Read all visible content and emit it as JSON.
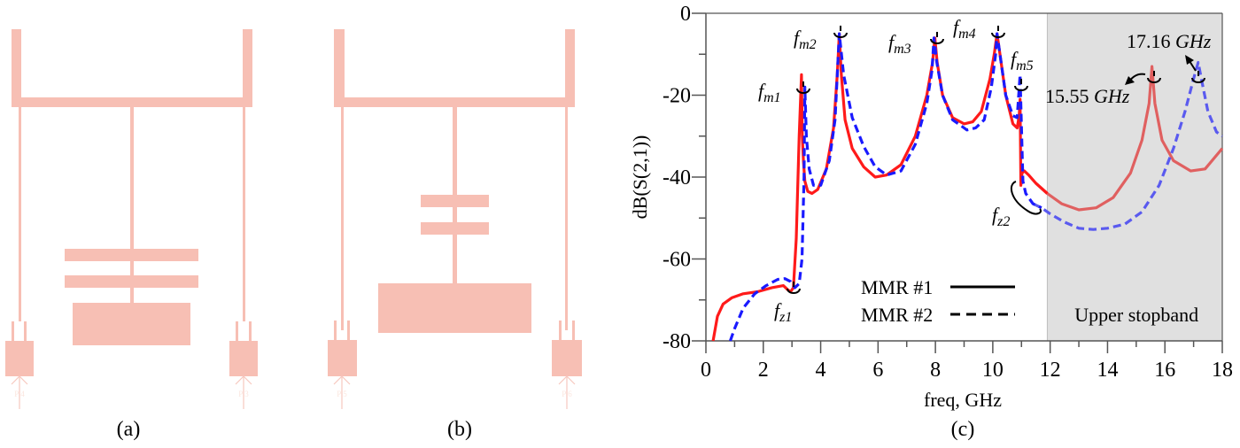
{
  "figure": {
    "captions": {
      "a": "(a)",
      "b": "(b)",
      "c": "(c)"
    },
    "layout_color": "#f7bfb4",
    "port_labels": {
      "a_left": "P 4",
      "a_right": "P 3",
      "b_left": "P 5",
      "b_right": "P 6"
    }
  },
  "chart_data": {
    "type": "line",
    "title": "",
    "xlabel": "freq, GHz",
    "ylabel": "dB(S(2,1))",
    "xlim": [
      0,
      18
    ],
    "ylim": [
      -80,
      0
    ],
    "xticks": [
      0,
      2,
      4,
      6,
      8,
      10,
      12,
      14,
      16,
      18
    ],
    "xtick_labels": [
      "0",
      "2",
      "4",
      "6",
      "8",
      "10",
      "12",
      "14",
      "16",
      "18"
    ],
    "yticks": [
      0,
      -20,
      -40,
      -60,
      -80
    ],
    "ytick_labels": [
      "0",
      "-20",
      "-40",
      "-60",
      "-80"
    ],
    "grid": false,
    "legend": {
      "position": "lower center",
      "entries": [
        {
          "label": "MMR #1",
          "style": "solid"
        },
        {
          "label": "MMR #2",
          "style": "dashed"
        }
      ]
    },
    "shaded_region": {
      "x0": 11.9,
      "x1": 18,
      "label": "Upper stopband",
      "color": "#e0e0e0"
    },
    "annotations": [
      {
        "id": "fm1",
        "text": "f",
        "sub": "m1",
        "x": 3.4,
        "y": -18
      },
      {
        "id": "fm2",
        "text": "f",
        "sub": "m2",
        "x": 4.65,
        "y": -7
      },
      {
        "id": "fm3",
        "text": "f",
        "sub": "m3",
        "x": 8.0,
        "y": -8
      },
      {
        "id": "fm4",
        "text": "f",
        "sub": "m4",
        "x": 10.15,
        "y": -6.5
      },
      {
        "id": "fm5",
        "text": "f",
        "sub": "m5",
        "x": 10.95,
        "y": -18
      },
      {
        "id": "fz1",
        "text": "f",
        "sub": "z1",
        "x": 3.0,
        "y": -67
      },
      {
        "id": "fz2",
        "text": "f",
        "sub": "z2",
        "x": 11.1,
        "y": -44
      },
      {
        "id": "peak1",
        "text": "15.55 GHz",
        "x": 15.55,
        "y": -13
      },
      {
        "id": "peak2",
        "text": "17.16 GHz",
        "x": 17.16,
        "y": -12
      }
    ],
    "series": [
      {
        "name": "MMR #1",
        "color": "#ff1a1a",
        "stopband_color": "#e06060",
        "style": "solid",
        "x": [
          0.25,
          0.4,
          0.6,
          0.9,
          1.3,
          1.8,
          2.3,
          2.7,
          2.85,
          2.95,
          3.05,
          3.15,
          3.25,
          3.33,
          3.36,
          3.4,
          3.45,
          3.55,
          3.7,
          3.9,
          4.2,
          4.45,
          4.58,
          4.65,
          4.72,
          4.85,
          5.1,
          5.5,
          5.9,
          6.3,
          6.8,
          7.3,
          7.7,
          7.9,
          7.98,
          8.06,
          8.25,
          8.6,
          9.0,
          9.3,
          9.6,
          9.9,
          10.05,
          10.15,
          10.25,
          10.45,
          10.7,
          10.85,
          10.92,
          10.95,
          10.98,
          11.02,
          11.1,
          11.25,
          11.5,
          11.9,
          12.4,
          13.0,
          13.6,
          14.2,
          14.8,
          15.2,
          15.45,
          15.55,
          15.65,
          15.9,
          16.3,
          16.9,
          17.4,
          18.0
        ],
        "y": [
          -80,
          -74,
          -71,
          -69.5,
          -68.5,
          -68,
          -67,
          -66.5,
          -67.5,
          -68,
          -67,
          -55,
          -30,
          -15,
          -30,
          -36,
          -41,
          -43.5,
          -44,
          -43,
          -38,
          -28,
          -15,
          -5,
          -15,
          -26,
          -33,
          -37.5,
          -40,
          -39.5,
          -37,
          -30,
          -20,
          -12,
          -6,
          -12,
          -20,
          -25.5,
          -27,
          -26.5,
          -24,
          -16,
          -10,
          -5,
          -10,
          -20,
          -27,
          -28,
          -25,
          -21,
          -42,
          -39,
          -38.5,
          -39.5,
          -41.5,
          -44,
          -46.5,
          -48,
          -47.5,
          -45,
          -39,
          -31,
          -22,
          -13,
          -22,
          -31,
          -36,
          -38.5,
          -38,
          -33
        ]
      },
      {
        "name": "MMR #2",
        "color": "#1a1aff",
        "stopband_color": "#5a5aef",
        "style": "dashed",
        "x": [
          0.85,
          1.0,
          1.3,
          1.7,
          2.1,
          2.5,
          2.75,
          2.95,
          3.1,
          3.25,
          3.35,
          3.42,
          3.45,
          3.5,
          3.6,
          3.75,
          4.0,
          4.3,
          4.5,
          4.65,
          4.8,
          5.1,
          5.5,
          5.9,
          6.3,
          6.8,
          7.3,
          7.7,
          7.88,
          7.95,
          8.05,
          8.25,
          8.6,
          9.0,
          9.1,
          9.4,
          9.7,
          9.95,
          10.1,
          10.15,
          10.25,
          10.45,
          10.7,
          10.85,
          10.95,
          11.0,
          11.05,
          11.15,
          11.4,
          11.7,
          12.0,
          12.5,
          13.0,
          13.5,
          14.0,
          14.6,
          15.2,
          15.8,
          16.3,
          16.7,
          17.0,
          17.16,
          17.3,
          17.5,
          17.8,
          18.0
        ],
        "y": [
          -80,
          -77,
          -72,
          -68.5,
          -66.5,
          -65,
          -64.8,
          -65.5,
          -67,
          -66,
          -60,
          -40,
          -18,
          -30,
          -38,
          -42,
          -42,
          -36,
          -26,
          -5,
          -15,
          -25.5,
          -32.5,
          -37.5,
          -39.5,
          -38.5,
          -32,
          -22,
          -14,
          -6,
          -12,
          -20,
          -26,
          -28,
          -28.5,
          -28,
          -26,
          -18,
          -10,
          -5,
          -10,
          -20,
          -25,
          -25.5,
          -15,
          -28,
          -41,
          -44,
          -46.5,
          -47.5,
          -49,
          -51,
          -52.5,
          -52.8,
          -52.5,
          -51.5,
          -48.5,
          -42,
          -33,
          -24,
          -16,
          -12,
          -17,
          -24,
          -29,
          -30
        ]
      }
    ]
  }
}
